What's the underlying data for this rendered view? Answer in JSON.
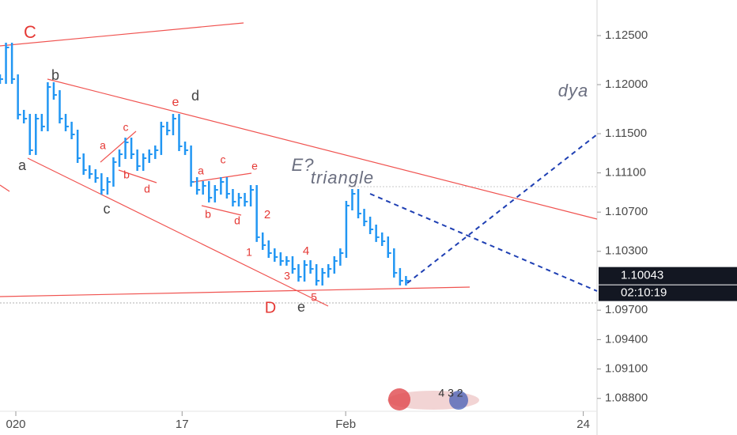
{
  "chart_data": {
    "type": "price-bars",
    "color": "#2196f3",
    "x": [
      0,
      1,
      2,
      3,
      4,
      5,
      6,
      7,
      8,
      9,
      10,
      11,
      12,
      13,
      14,
      15,
      16,
      17,
      18,
      19,
      20,
      21,
      22,
      23,
      24,
      25,
      26,
      27,
      28,
      29,
      30,
      31,
      32,
      33,
      34,
      35,
      36,
      37,
      38,
      39,
      40,
      41,
      42,
      43,
      44,
      45,
      46,
      47,
      48,
      49,
      50,
      51,
      52,
      53,
      54,
      55,
      56,
      57,
      58,
      59,
      60,
      61,
      62,
      63,
      64,
      65,
      66,
      67,
      68
    ],
    "values": [
      1.12056,
      1.12379,
      1.12056,
      1.11694,
      1.11653,
      1.11331,
      1.11653,
      1.11573,
      1.11976,
      1.11895,
      1.11653,
      1.11573,
      1.11492,
      1.1125,
      1.11129,
      1.11089,
      1.11048,
      1.10927,
      1.11008,
      1.1121,
      1.1129,
      1.11411,
      1.1129,
      1.11169,
      1.1125,
      1.1129,
      1.11331,
      1.11573,
      1.11532,
      1.11653,
      1.11371,
      1.11331,
      1.11008,
      1.10927,
      1.10968,
      1.10847,
      1.10927,
      1.11008,
      1.10887,
      1.10806,
      1.10847,
      1.10806,
      1.10927,
      1.10444,
      1.10363,
      1.10282,
      1.10242,
      1.10202,
      1.10202,
      1.10121,
      1.1004,
      1.10161,
      1.10121,
      1.1,
      1.10081,
      1.10121,
      1.10202,
      1.10282,
      1.10766,
      1.10887,
      1.10685,
      1.10605,
      1.10524,
      1.10444,
      1.10403,
      1.10282,
      1.10081,
      1.1,
      1.1
    ],
    "xlim": [
      0,
      100
    ],
    "xticks": [
      {
        "value": 2.65,
        "label": "020"
      },
      {
        "value": 30.5,
        "label": "17"
      },
      {
        "value": 57.9,
        "label": "Feb"
      },
      {
        "value": 97.7,
        "label": "24"
      }
    ],
    "ylim": [
      1.08427,
      1.12863
    ],
    "yticks": [
      {
        "value": 1.125,
        "label": "1.12500"
      },
      {
        "value": 1.12,
        "label": "1.12000"
      },
      {
        "value": 1.115,
        "label": "1.11500"
      },
      {
        "value": 1.111,
        "label": "1.11100"
      },
      {
        "value": 1.107,
        "label": "1.10700"
      },
      {
        "value": 1.103,
        "label": "1.10300"
      },
      {
        "value": 1.097,
        "label": "1.09700"
      },
      {
        "value": 1.094,
        "label": "1.09400"
      },
      {
        "value": 1.091,
        "label": "1.09100"
      },
      {
        "value": 1.088,
        "label": "1.08800"
      }
    ],
    "last_price": {
      "value": 1.10043,
      "label": "1.10043"
    },
    "countdown": "02:10:19",
    "annotations": [
      {
        "text": "C",
        "color": "#e53935"
      },
      {
        "text": "b",
        "color": "#444444"
      },
      {
        "text": "e",
        "color": "#e53935"
      },
      {
        "text": "d",
        "color": "#444444"
      },
      {
        "text": "a",
        "color": "#444444"
      },
      {
        "text": "c",
        "color": "#444444"
      },
      {
        "text": "c",
        "color": "#e53935"
      },
      {
        "text": "a",
        "color": "#e53935"
      },
      {
        "text": "b",
        "color": "#e53935"
      },
      {
        "text": "d",
        "color": "#e53935"
      },
      {
        "text": "a",
        "color": "#e53935"
      },
      {
        "text": "c",
        "color": "#e53935"
      },
      {
        "text": "e",
        "color": "#e53935"
      },
      {
        "text": "b",
        "color": "#e53935"
      },
      {
        "text": "d",
        "color": "#e53935"
      },
      {
        "text": "2",
        "color": "#e53935"
      },
      {
        "text": "1",
        "color": "#e53935"
      },
      {
        "text": "4",
        "color": "#e53935"
      },
      {
        "text": "3",
        "color": "#e53935"
      },
      {
        "text": "5",
        "color": "#e53935"
      },
      {
        "text": "D",
        "color": "#e53935"
      },
      {
        "text": "e",
        "color": "#444444"
      },
      {
        "text": "E?",
        "color": "#6b6f80"
      },
      {
        "text": "triangle",
        "color": "#6b6f80"
      },
      {
        "text": "dya",
        "color": "#6b6f80"
      }
    ],
    "logo_text": "4 3 2"
  }
}
